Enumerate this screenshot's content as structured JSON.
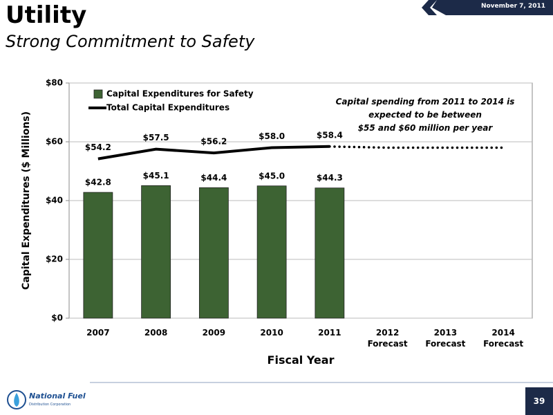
{
  "header": {
    "title": "Utility",
    "subtitle": "Strong Commitment to Safety",
    "date": "November 7, 2011"
  },
  "footer": {
    "page": "39",
    "logo": "National Fuel",
    "logo_subtitle": "Distribution Corporation"
  },
  "chart_data": {
    "type": "bar",
    "y_label": "Capital Expenditures ($ Millions)",
    "x_label": "Fiscal Year",
    "annotation": "Capital spending from 2011 to 2014 is\nexpected to be between\n$55 and $60 million per year",
    "categories": [
      "2007",
      "2008",
      "2009",
      "2010",
      "2011",
      "2012\nForecast",
      "2013\nForecast",
      "2014\nForecast"
    ],
    "series": [
      {
        "name": "Capital Expenditures for Safety",
        "type": "bar",
        "color": "#3d6333",
        "values": [
          42.8,
          45.1,
          44.4,
          45.0,
          44.3,
          null,
          null,
          null
        ],
        "value_labels": [
          "$42.8",
          "$45.1",
          "$44.4",
          "$45.0",
          "$44.3",
          null,
          null,
          null
        ]
      },
      {
        "name": "Total Capital Expenditures",
        "type": "line",
        "color": "#000000",
        "values": [
          54.2,
          57.5,
          56.2,
          58.0,
          58.4,
          null,
          null,
          null
        ],
        "value_labels": [
          "$54.2",
          "$57.5",
          "$56.2",
          "$58.0",
          "$58.4",
          null,
          null,
          null
        ]
      }
    ],
    "projection": {
      "color": "#000000",
      "values": [
        null,
        null,
        null,
        null,
        58.4,
        58,
        58,
        58
      ]
    },
    "ylim": [
      0,
      80
    ],
    "yticks": [
      {
        "value": 0,
        "label": "$0"
      },
      {
        "value": 20,
        "label": "$20"
      },
      {
        "value": 40,
        "label": "$40"
      },
      {
        "value": 60,
        "label": "$60"
      },
      {
        "value": 80,
        "label": "$80"
      }
    ],
    "grid": true,
    "legend": "top-left"
  }
}
